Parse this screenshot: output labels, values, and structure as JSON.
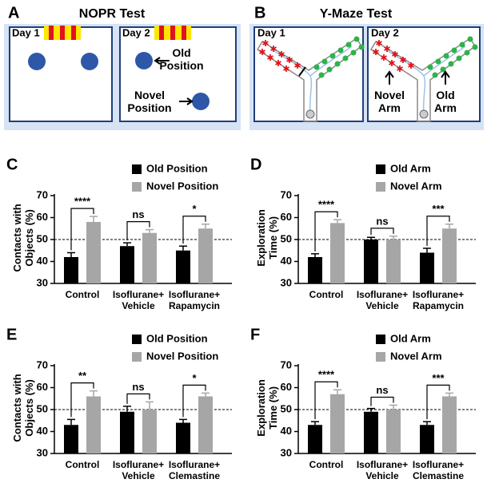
{
  "diagrams": [
    {
      "panel_label": "A",
      "title": "NOPR Test",
      "day1": "Day 1",
      "day2": "Day 2",
      "label_top": "Old Position",
      "label_bottom": "Novel Position"
    },
    {
      "panel_label": "B",
      "title": "Y-Maze Test",
      "day1": "Day 1",
      "day2": "Day 2",
      "label_left": "Novel Arm",
      "label_right": "Old Arm"
    }
  ],
  "chart_data": [
    {
      "type": "bar",
      "panel_label": "C",
      "ylabel": "Contacts with Objects (%)",
      "categories": [
        "Control",
        "Isoflurane+ Vehicle",
        "Isoflurane+ Rapamycin"
      ],
      "series": [
        {
          "name": "Old Position",
          "color": "#000000",
          "values": [
            42,
            47,
            45
          ],
          "errors": [
            2,
            1.5,
            2
          ]
        },
        {
          "name": "Novel Position",
          "color": "#a6a6a6",
          "values": [
            58,
            53,
            55
          ],
          "errors": [
            2.5,
            1.5,
            2
          ]
        }
      ],
      "ylim": [
        30,
        70
      ],
      "yticks": [
        30,
        40,
        50,
        60,
        70
      ],
      "reference_line": 50,
      "annotations": [
        "****",
        "ns",
        "*"
      ]
    },
    {
      "type": "bar",
      "panel_label": "D",
      "ylabel": "Exploration Time (%)",
      "categories": [
        "Control",
        "Isoflurane+ Vehicle",
        "Isoflurane+ Rapamycin"
      ],
      "series": [
        {
          "name": "Old Arm",
          "color": "#000000",
          "values": [
            42,
            50,
            44
          ],
          "errors": [
            1.5,
            1,
            2
          ]
        },
        {
          "name": "Novel Arm",
          "color": "#a6a6a6",
          "values": [
            57.5,
            50,
            55
          ],
          "errors": [
            1.5,
            1.5,
            2
          ]
        }
      ],
      "ylim": [
        30,
        70
      ],
      "yticks": [
        30,
        40,
        50,
        60,
        70
      ],
      "reference_line": 50,
      "annotations": [
        "****",
        "ns",
        "***"
      ]
    },
    {
      "type": "bar",
      "panel_label": "E",
      "ylabel": "Contacts with Objects (%)",
      "categories": [
        "Control",
        "Isoflurane+ Vehicle",
        "Isoflurane+ Clemastine"
      ],
      "series": [
        {
          "name": "Old Position",
          "color": "#000000",
          "values": [
            43,
            49,
            44
          ],
          "errors": [
            2.5,
            2.5,
            1.5
          ]
        },
        {
          "name": "Novel Position",
          "color": "#a6a6a6",
          "values": [
            56,
            50,
            56
          ],
          "errors": [
            2.5,
            3.5,
            1.5
          ]
        }
      ],
      "ylim": [
        30,
        70
      ],
      "yticks": [
        30,
        40,
        50,
        60,
        70
      ],
      "reference_line": 50,
      "annotations": [
        "**",
        "ns",
        "*"
      ]
    },
    {
      "type": "bar",
      "panel_label": "F",
      "ylabel": "Exploration Time (%)",
      "categories": [
        "Control",
        "Isoflurane+ Vehicle",
        "Isoflurane+ Clemastine"
      ],
      "series": [
        {
          "name": "Old Arm",
          "color": "#000000",
          "values": [
            43,
            49,
            43
          ],
          "errors": [
            1.5,
            1.5,
            1.5
          ]
        },
        {
          "name": "Novel Arm",
          "color": "#a6a6a6",
          "values": [
            57,
            50,
            56
          ],
          "errors": [
            2,
            2,
            1.5
          ]
        }
      ],
      "ylim": [
        30,
        70
      ],
      "yticks": [
        30,
        40,
        50,
        60,
        70
      ],
      "reference_line": 50,
      "annotations": [
        "****",
        "ns",
        "***"
      ]
    }
  ]
}
